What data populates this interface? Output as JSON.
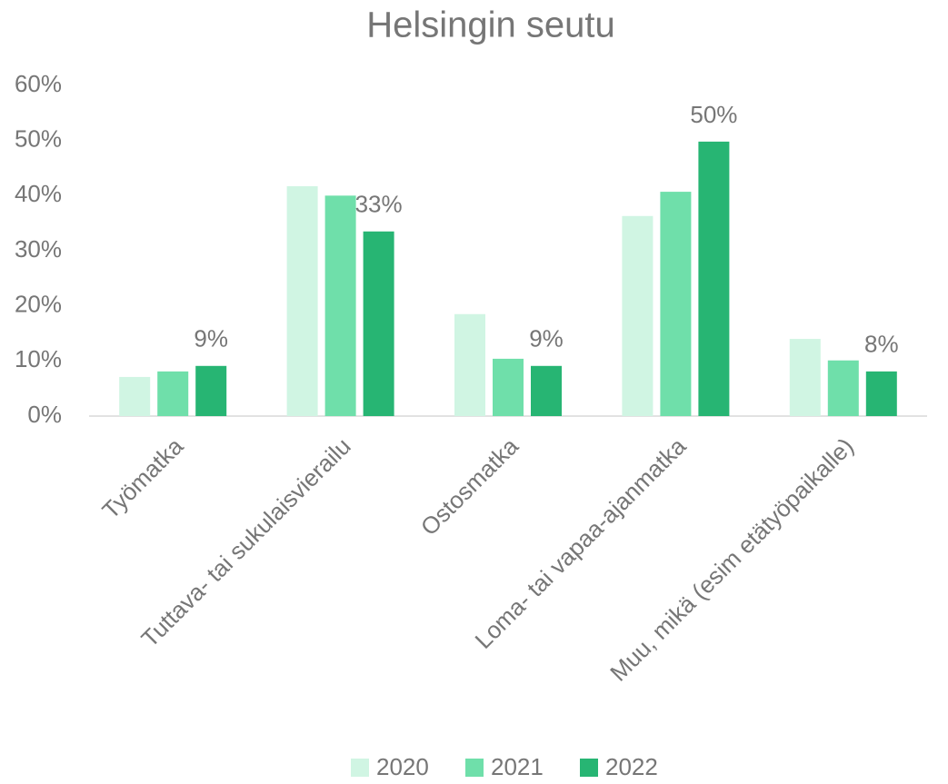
{
  "chart_data": {
    "type": "bar",
    "title": "Helsingin seutu",
    "categories": [
      "Työmatka",
      "Tuttava- tai sukulaisvierailu",
      "Ostosmatka",
      "Loma- tai vapaa-ajanmatka",
      "Muu, mikä (esim etätyöpaikalle)"
    ],
    "series": [
      {
        "name": "2020",
        "color": "#d0f5e3",
        "values": [
          7.1,
          41.7,
          18.5,
          36.3,
          14.0
        ]
      },
      {
        "name": "2021",
        "color": "#6fdfaa",
        "values": [
          8.1,
          40.0,
          10.4,
          40.7,
          10.1
        ]
      },
      {
        "name": "2022",
        "color": "#27b573",
        "values": [
          9.1,
          33.5,
          9.1,
          49.8,
          8.1
        ],
        "value_labels": [
          "9%",
          "33%",
          "9%",
          "50%",
          "8%"
        ]
      }
    ],
    "ylim": [
      0,
      60
    ],
    "yticks": [
      {
        "value": 0,
        "label": "0%"
      },
      {
        "value": 10,
        "label": "10%"
      },
      {
        "value": 20,
        "label": "20%"
      },
      {
        "value": 30,
        "label": "30%"
      },
      {
        "value": 40,
        "label": "40%"
      },
      {
        "value": 50,
        "label": "50%"
      },
      {
        "value": 60,
        "label": "60%"
      }
    ],
    "grid": false,
    "legend": "bottom"
  }
}
